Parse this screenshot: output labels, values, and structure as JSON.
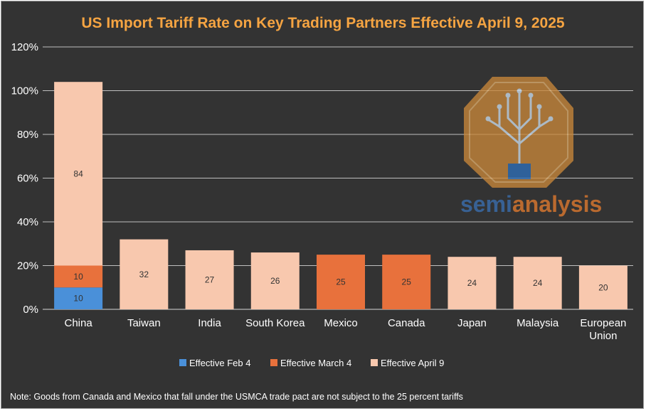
{
  "chart_data": {
    "type": "bar",
    "stacked": true,
    "title": "US Import Tariff Rate on Key Trading Partners Effective April 9, 2025",
    "categories": [
      "China",
      "Taiwan",
      "India",
      "South Korea",
      "Mexico",
      "Canada",
      "Japan",
      "Malaysia",
      "European Union"
    ],
    "series": [
      {
        "name": "Effective Feb 4",
        "color": "#4a90d9",
        "values": [
          10,
          0,
          0,
          0,
          0,
          0,
          0,
          0,
          0
        ]
      },
      {
        "name": "Effective March 4",
        "color": "#e8713c",
        "values": [
          10,
          0,
          0,
          0,
          25,
          25,
          0,
          0,
          0
        ]
      },
      {
        "name": "Effective April 9",
        "color": "#f8c8ae",
        "values": [
          84,
          32,
          27,
          26,
          0,
          0,
          24,
          24,
          20
        ]
      }
    ],
    "ylim": [
      0,
      120
    ],
    "yticks": [
      "0%",
      "20%",
      "40%",
      "60%",
      "80%",
      "100%",
      "120%"
    ],
    "ytick_values": [
      0,
      20,
      40,
      60,
      80,
      100,
      120
    ],
    "legend_position": "bottom",
    "grid": true
  },
  "watermark": {
    "text_part1": "semi",
    "text_part2": "analysis",
    "color1": "#3a6fb0",
    "color2": "#e07a2e",
    "badge_color": "#c8873a"
  },
  "note": "Note: Goods from Canada and Mexico that fall under the USMCA trade pact are not subject to the 25 percent tariffs"
}
